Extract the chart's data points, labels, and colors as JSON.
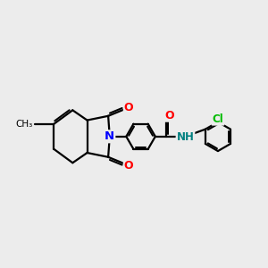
{
  "bg_color": "#ececec",
  "bond_color": "#000000",
  "bond_width": 1.6,
  "atom_colors": {
    "N": "#0000ff",
    "O": "#ff0000",
    "Cl": "#00bb00",
    "H": "#008080"
  }
}
